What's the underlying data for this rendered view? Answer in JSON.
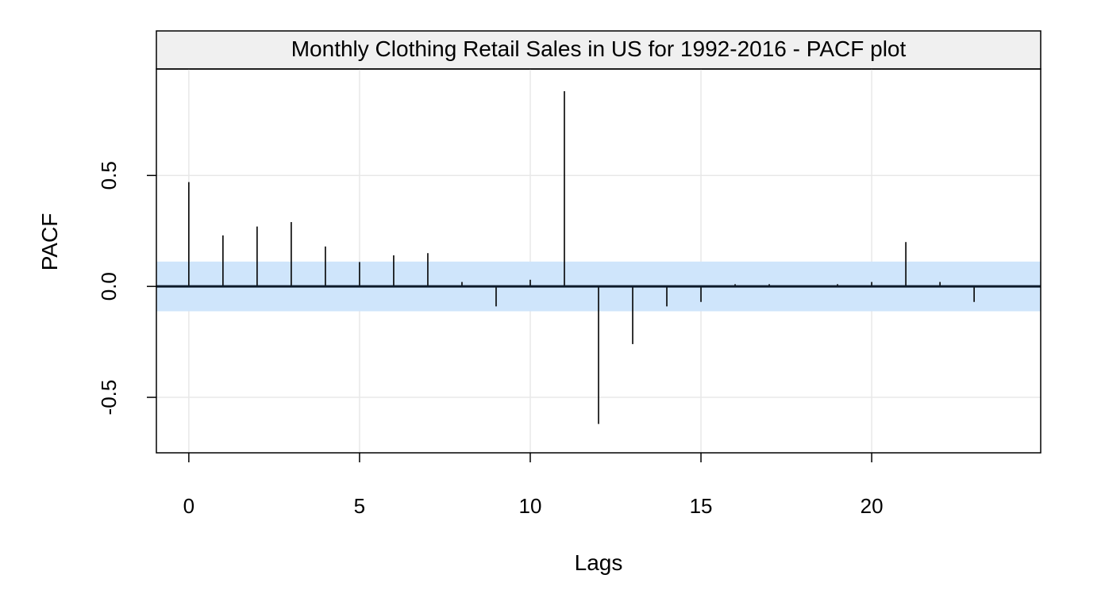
{
  "chart_data": {
    "type": "bar",
    "subtype": "pacf-stem",
    "title": "Monthly Clothing Retail Sales in US for 1992-2016 - PACF plot",
    "xlabel": "Lags",
    "ylabel": "PACF",
    "xlim": [
      -0.95,
      24.95
    ],
    "ylim": [
      -0.75,
      0.98
    ],
    "xticks": [
      0,
      5,
      10,
      15,
      20
    ],
    "yticks": [
      -0.5,
      0.0,
      0.5
    ],
    "xtick_labels": [
      "0",
      "5",
      "10",
      "15",
      "20"
    ],
    "ytick_labels": [
      "-0.5",
      "0.0",
      "0.5"
    ],
    "grid": true,
    "confidence_band": [
      -0.112,
      0.112
    ],
    "lags": [
      0,
      1,
      2,
      3,
      4,
      5,
      6,
      7,
      8,
      9,
      10,
      11,
      12,
      13,
      14,
      15,
      16,
      17,
      18,
      19,
      20,
      21,
      22,
      23
    ],
    "values": [
      0.47,
      0.23,
      0.27,
      0.29,
      0.18,
      0.11,
      0.14,
      0.15,
      0.02,
      -0.09,
      0.03,
      0.88,
      -0.62,
      -0.26,
      -0.09,
      -0.07,
      0.01,
      0.01,
      0.0,
      0.01,
      0.02,
      0.2,
      0.02,
      -0.07
    ],
    "colors": {
      "band": "#cfe5fb",
      "stem": "#000000",
      "zero_line": "#0c1a2a",
      "grid": "#e8e8e8",
      "title_strip": "#f0f0f0"
    }
  }
}
